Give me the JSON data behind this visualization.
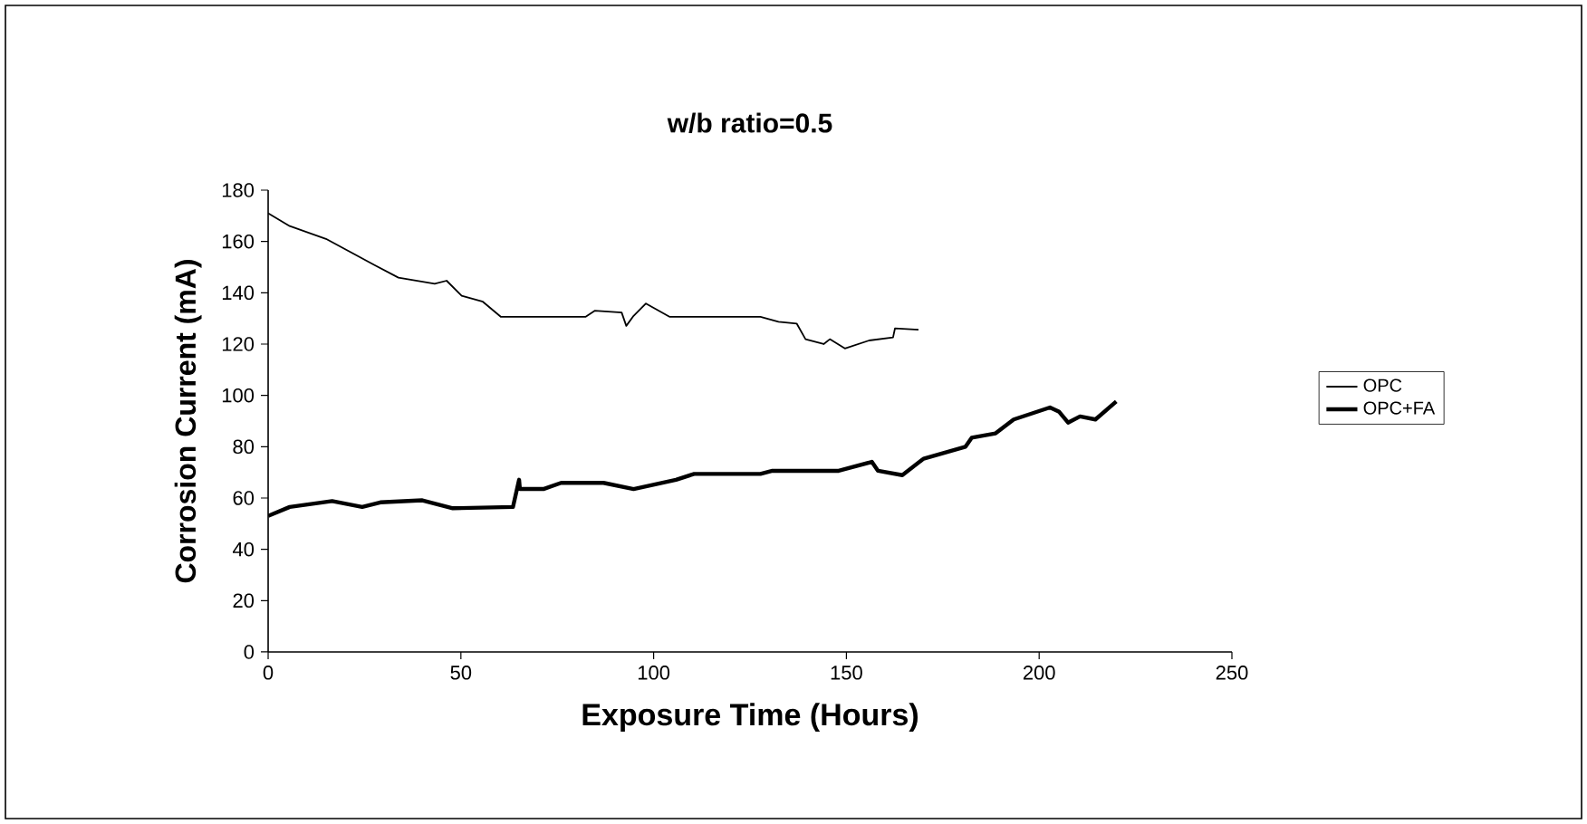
{
  "chart_data": {
    "type": "line",
    "title": "w/b ratio=0.5",
    "xlabel": "Exposure Time (Hours)",
    "ylabel": "Corrosion Current (mA)",
    "xlim": [
      0,
      250
    ],
    "ylim": [
      0,
      180
    ],
    "xticks": [
      0,
      50,
      100,
      150,
      200,
      250
    ],
    "yticks": [
      0,
      20,
      40,
      60,
      80,
      100,
      120,
      140,
      160,
      180
    ],
    "grid": false,
    "legend": "right",
    "marker": "none",
    "line_style": "solid",
    "series": [
      {
        "name": "OPC",
        "color": "#000000",
        "x": [
          0,
          5.6,
          15,
          27.6,
          33.8,
          43.2,
          46.3,
          50.2,
          55.7,
          60.4,
          82.3,
          84.7,
          91.7,
          92.9,
          94.8,
          98,
          104.2,
          127.7,
          132.4,
          137.1,
          139.4,
          144.1,
          145.7,
          149.6,
          155.9,
          162.1,
          162.6,
          168.7
        ],
        "values": [
          171,
          166,
          161,
          150.8,
          145.9,
          143.5,
          144.7,
          138.8,
          136.5,
          130.6,
          130.6,
          133,
          132.3,
          127.1,
          131,
          135.8,
          130.6,
          130.6,
          128.7,
          128,
          121.9,
          120,
          121.9,
          118.3,
          121.4,
          122.6,
          126.1,
          125.6
        ]
      },
      {
        "name": "OPC+FA",
        "color": "#000000",
        "x": [
          0,
          5.6,
          16.6,
          24.4,
          29.1,
          40,
          47.9,
          63.5,
          65.1,
          65.3,
          71.4,
          76,
          87,
          94.8,
          105.8,
          110.5,
          127.7,
          130.8,
          137.1,
          148,
          156.6,
          158.2,
          164.5,
          170,
          180.9,
          182.5,
          188.7,
          193.4,
          202.8,
          205.2,
          207.5,
          210.6,
          214.6,
          220
        ],
        "values": [
          53,
          56.5,
          58.8,
          56.5,
          58.3,
          59.1,
          56,
          56.5,
          67.1,
          63.5,
          63.5,
          65.9,
          65.9,
          63.5,
          67.1,
          69.4,
          69.4,
          70.6,
          70.6,
          70.6,
          74.1,
          70.6,
          68.9,
          75.3,
          80,
          83.5,
          85.2,
          90.6,
          95.3,
          93.6,
          89.4,
          91.8,
          90.6,
          97.6
        ]
      }
    ]
  }
}
